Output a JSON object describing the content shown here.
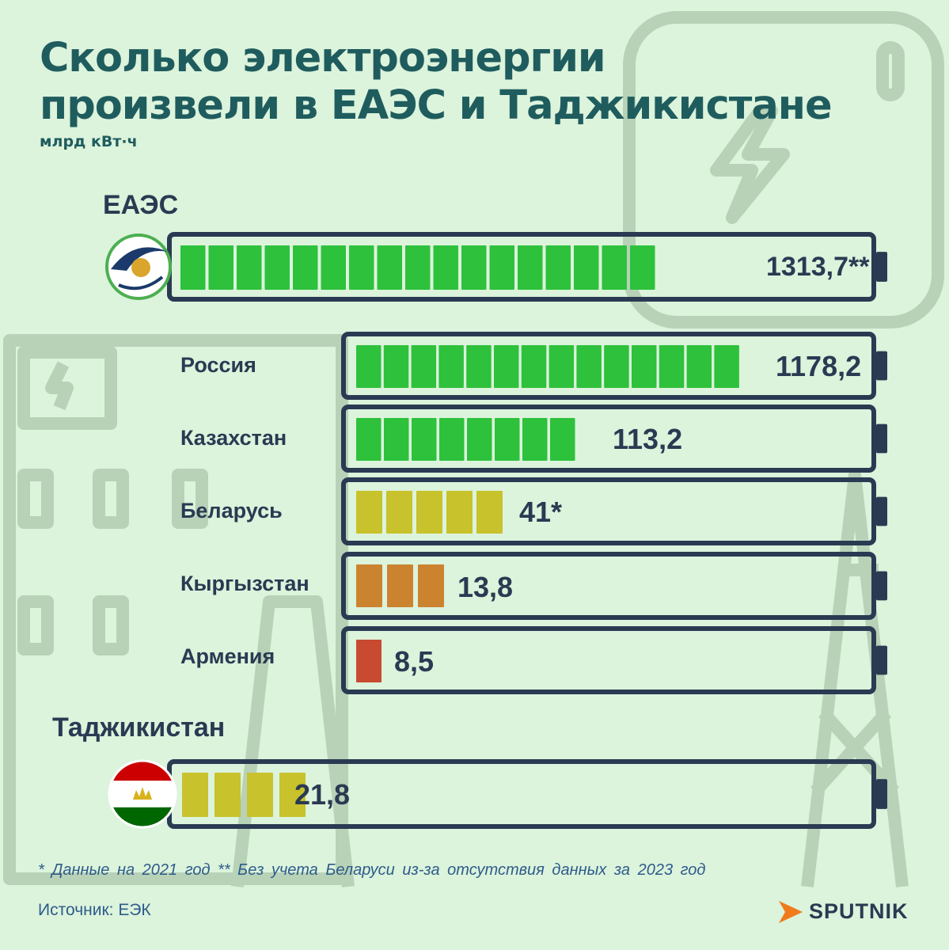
{
  "header": {
    "title_line1": "Сколько электроэнергии",
    "title_line2": "произвели в ЕАЭС и Таджикистане",
    "unit": "млрд кВт·ч"
  },
  "chart_data": {
    "type": "bar",
    "title": "Сколько электроэнергии произвели в ЕАЭС и Таджикистане",
    "ylabel": "млрд кВт·ч",
    "series": [
      {
        "key": "eaes",
        "name": "ЕАЭС",
        "value": 1313.7,
        "label": "1313,7**",
        "segments": 17,
        "color": "#2ec13c"
      },
      {
        "key": "russia",
        "name": "Россия",
        "value": 1178.2,
        "label": "1178,2",
        "segments": 14,
        "color": "#2ec13c"
      },
      {
        "key": "kazakhstan",
        "name": "Казахстан",
        "value": 113.2,
        "label": "113,2",
        "segments": 8,
        "color": "#2ec13c"
      },
      {
        "key": "belarus",
        "name": "Беларусь",
        "value": 41,
        "label": "41*",
        "segments": 5,
        "color": "#c8c22c"
      },
      {
        "key": "kyrgyzstan",
        "name": "Кыргызстан",
        "value": 13.8,
        "label": "13,8",
        "segments": 3,
        "color": "#cc8330"
      },
      {
        "key": "armenia",
        "name": "Армения",
        "value": 8.5,
        "label": "8,5",
        "segments": 1,
        "color": "#c84a30"
      },
      {
        "key": "tajikistan",
        "name": "Таджикистан",
        "value": 21.8,
        "label": "21,8",
        "segments": 4,
        "color": "#c8c22c"
      }
    ]
  },
  "footer": {
    "notes": "* Данные на 2021 год  ** Без учета Беларуси из-за отсутствия данных за 2023 год",
    "source": "Источник: ЕЭК",
    "brand": "SPUTNIK"
  },
  "colors": {
    "background": "#dcf3dc",
    "title": "#1f5c5e",
    "outline": "#2a3a52",
    "bg_icons": "#b8d2b8"
  }
}
